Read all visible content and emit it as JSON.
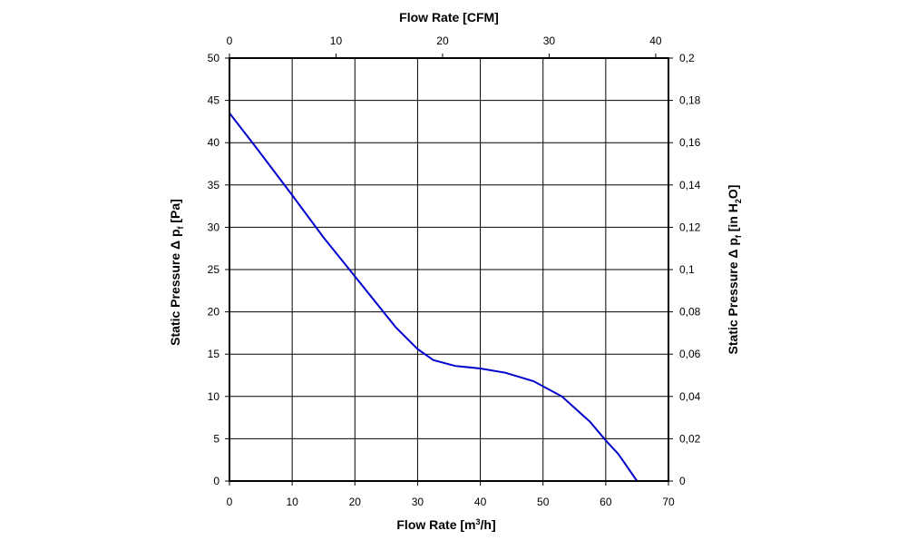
{
  "chart_data": {
    "type": "line",
    "title": "",
    "xlabel_bottom": {
      "text": "Flow Rate [m",
      "sup": "3",
      "tail": "/h]"
    },
    "xlabel_top": "Flow Rate [CFM]",
    "ylabel_left": {
      "text": "Static Pressure Δ p",
      "sub": "f",
      "tail": " [Pa]"
    },
    "ylabel_right": {
      "text": "Static Pressure Δ p",
      "sub": "f",
      "mid": " [in H",
      "sub2": "2",
      "tail": "O]"
    },
    "xlim": [
      0,
      70
    ],
    "ylim": [
      0,
      50
    ],
    "x2lim": [
      0,
      41.2
    ],
    "y2lim": [
      0,
      0.2
    ],
    "x_ticks": [
      "0",
      "10",
      "20",
      "30",
      "40",
      "50",
      "60",
      "70"
    ],
    "y_ticks": [
      "0",
      "5",
      "10",
      "15",
      "20",
      "25",
      "30",
      "35",
      "40",
      "45",
      "50"
    ],
    "x2_ticks": [
      "0",
      "10",
      "20",
      "30",
      "40"
    ],
    "x2_tick_values": [
      0,
      10,
      20,
      30,
      40
    ],
    "y2_ticks": [
      "0",
      "0,02",
      "0,04",
      "0,06",
      "0,08",
      "0,1",
      "0,12",
      "0,14",
      "0,16",
      "0,18",
      "0,2"
    ],
    "grid": true,
    "series": [
      {
        "color": "#0000cc",
        "x": [
          0,
          4.5,
          10,
          15,
          20,
          26.5,
          30,
          32.5,
          36,
          40,
          44,
          48.5,
          53,
          57.5,
          60,
          62,
          65
        ],
        "y": [
          43.5,
          39.2,
          33.8,
          28.8,
          24.2,
          18.2,
          15.6,
          14.3,
          13.6,
          13.3,
          12.8,
          11.8,
          10,
          7,
          4.8,
          3.2,
          0
        ]
      }
    ]
  }
}
